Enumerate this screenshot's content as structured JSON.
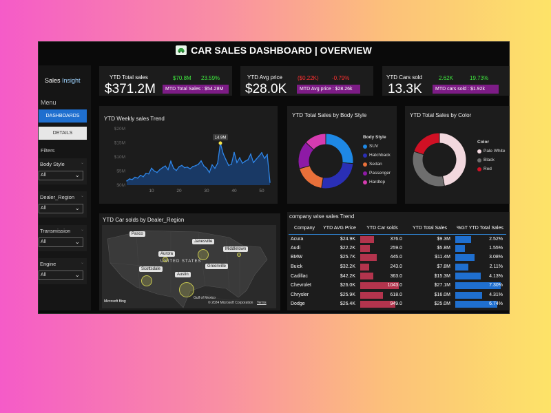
{
  "title": "CAR SALES DASHBOARD | OVERVIEW",
  "sidebar": {
    "brand_main": "Sales",
    "brand_accent": "Insight",
    "menu_label": "Menu",
    "dashboards_btn": "DASHBOARDS",
    "details_btn": "DETAILS",
    "filters_label": "Filters",
    "filters": [
      {
        "label": "Body Style",
        "value": "All"
      },
      {
        "label": "Dealer_Region",
        "value": "All"
      },
      {
        "label": "Transmission",
        "value": "All"
      },
      {
        "label": "Engine",
        "value": "All"
      }
    ]
  },
  "kpis": [
    {
      "title": "YTD Total sales",
      "value": "$371.2M",
      "delta1": "$70.8M",
      "delta2": "23.59%",
      "mtd": "MTD Total Sales : $54.28M",
      "trend": "up"
    },
    {
      "title": "YTD Avg price",
      "value": "$28.0K",
      "delta1": "($0.22K)",
      "delta2": "-0.79%",
      "mtd": "MTD Avg price : $28.26k",
      "trend": "down"
    },
    {
      "title": "YTD Cars sold",
      "value": "13.3K",
      "delta1": "2.62K",
      "delta2": "19.73%",
      "mtd": "MTD cars sold : $1.92k",
      "trend": "up"
    }
  ],
  "weekly": {
    "title": "YTD Weekly sales Trend",
    "peak_label": "14.9M",
    "chart_data": {
      "type": "area",
      "x": [
        1,
        2,
        3,
        4,
        5,
        6,
        7,
        8,
        9,
        10,
        11,
        12,
        13,
        14,
        15,
        16,
        17,
        18,
        19,
        20,
        21,
        22,
        23,
        24,
        25,
        26,
        27,
        28,
        29,
        30,
        31,
        32,
        33,
        34,
        35,
        36,
        37,
        38,
        39,
        40,
        41,
        42,
        43,
        44,
        45,
        46,
        47,
        48,
        49,
        50,
        51,
        52,
        53
      ],
      "values": [
        1.5,
        2.2,
        2.0,
        2.8,
        2.5,
        3.5,
        3.0,
        4.2,
        4.0,
        6.0,
        5.0,
        4.5,
        5.5,
        6.2,
        6.8,
        5.5,
        8.5,
        6.0,
        5.2,
        6.5,
        7.0,
        6.2,
        6.4,
        5.8,
        6.6,
        6.9,
        7.4,
        8.6,
        6.8,
        6.0,
        4.5,
        7.2,
        6.0,
        7.8,
        14.9,
        11.2,
        9.0,
        7.0,
        7.4,
        11.6,
        8.0,
        9.7,
        7.8,
        8.5,
        9.0,
        11.0,
        8.0,
        9.2,
        10.3,
        11.5,
        9.5,
        10.8,
        1.0
      ],
      "yticks": [
        "$0M",
        "$5M",
        "$10M",
        "$15M",
        "$20M"
      ],
      "ytick_values": [
        0,
        5,
        10,
        15,
        20
      ],
      "xticks": [
        "10",
        "20",
        "30",
        "40",
        "50"
      ],
      "xtick_values": [
        10,
        20,
        30,
        40,
        50
      ],
      "ylim": [
        0,
        20
      ]
    }
  },
  "body_style": {
    "title": "YTD Total Sales by Body Style",
    "legend_title": "Body Style",
    "chart_data": {
      "type": "pie",
      "labels": [
        "SUV",
        "Hatchback",
        "Sedan",
        "Passenger",
        "Hardtop"
      ],
      "values": [
        26.5,
        26.0,
        18.0,
        16.5,
        13.0
      ],
      "colors": [
        "#1e88e5",
        "#2a2fb5",
        "#e8703a",
        "#8e1aa6",
        "#d63bb0"
      ]
    }
  },
  "color": {
    "title": "YTD Total Sales by Color",
    "legend_title": "Color",
    "chart_data": {
      "type": "pie",
      "labels": [
        "Pale White",
        "Black",
        "Red"
      ],
      "values": [
        47,
        33,
        20
      ],
      "colors": [
        "#f2d8de",
        "#6e6e6e",
        "#d01024"
      ]
    }
  },
  "map": {
    "title": "YTD Car solds by Dealer_Region",
    "country_label": "UNITED STATES",
    "gulf_label": "Gulf of Mexico",
    "copyright": "© 2024 Microsoft Corporation",
    "terms": "Terms",
    "bing": "Microsoft Bing",
    "pins": [
      "Pasco",
      "Janesville",
      "Middletown",
      "Aurora",
      "Greenville",
      "Scottsdale",
      "Austin"
    ]
  },
  "table": {
    "title": "company wise sales Trend",
    "headers": [
      "Company",
      "YTD AVG Price",
      "YTD Car solds",
      "YTD Total Sales",
      "%GT YTD Total Sales"
    ],
    "rows": [
      {
        "company": "Acura",
        "avg": "$24.9K",
        "sold": "376.0",
        "sold_num": 376,
        "total": "$9.3M",
        "pct": "2.52%",
        "pct_num": 2.52
      },
      {
        "company": "Audi",
        "avg": "$22.2K",
        "sold": "259.0",
        "sold_num": 259,
        "total": "$5.8M",
        "pct": "1.55%",
        "pct_num": 1.55
      },
      {
        "company": "BMW",
        "avg": "$25.7K",
        "sold": "445.0",
        "sold_num": 445,
        "total": "$11.4M",
        "pct": "3.08%",
        "pct_num": 3.08
      },
      {
        "company": "Buick",
        "avg": "$32.2K",
        "sold": "243.0",
        "sold_num": 243,
        "total": "$7.8M",
        "pct": "2.11%",
        "pct_num": 2.11
      },
      {
        "company": "Cadillac",
        "avg": "$42.2K",
        "sold": "363.0",
        "sold_num": 363,
        "total": "$15.3M",
        "pct": "4.13%",
        "pct_num": 4.13
      },
      {
        "company": "Chevrolet",
        "avg": "$26.0K",
        "sold": "1043.0",
        "sold_num": 1043,
        "total": "$27.1M",
        "pct": "7.30%",
        "pct_num": 7.3
      },
      {
        "company": "Chrysler",
        "avg": "$25.9K",
        "sold": "618.0",
        "sold_num": 618,
        "total": "$16.0M",
        "pct": "4.31%",
        "pct_num": 4.31
      },
      {
        "company": "Dodge",
        "avg": "$26.4K",
        "sold": "949.0",
        "sold_num": 949,
        "total": "$25.0M",
        "pct": "6.74%",
        "pct_num": 6.74
      }
    ]
  }
}
